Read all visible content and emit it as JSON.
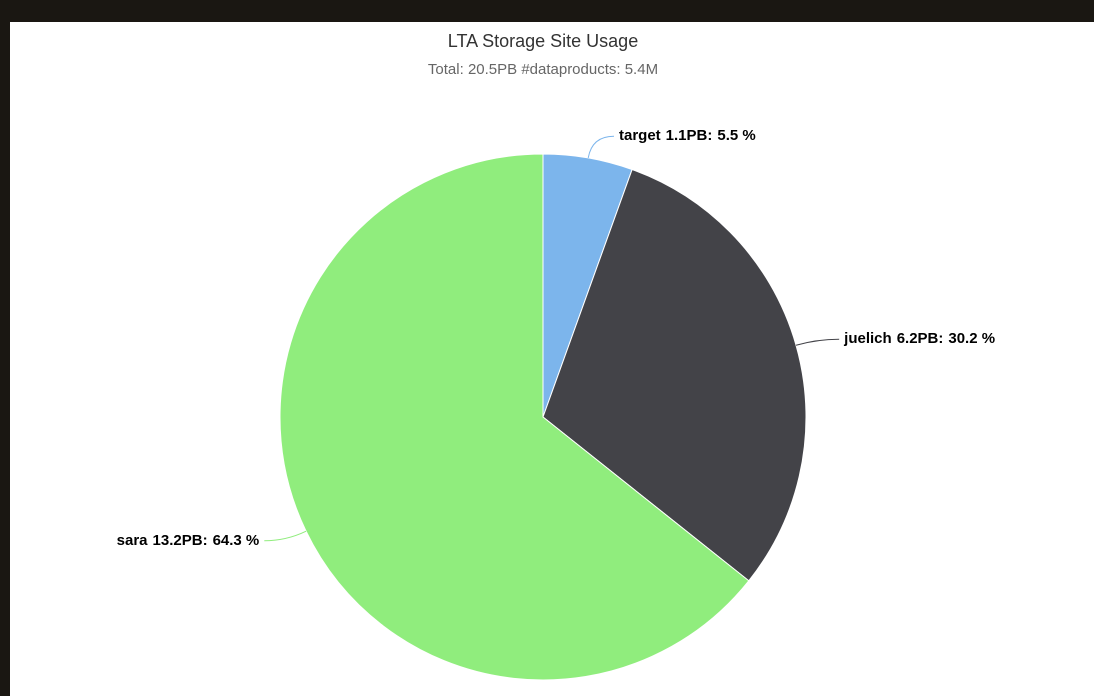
{
  "chart_data": {
    "type": "pie",
    "title": "LTA Storage Site Usage",
    "subtitle": "Total: 20.5PB #dataproducts: 5.4M",
    "categories": [
      "target",
      "juelich",
      "sara"
    ],
    "sizes": [
      1.1,
      6.2,
      13.2
    ],
    "size_labels": [
      "1.1PB:",
      "6.2PB:",
      "13.2PB:"
    ],
    "values": [
      5.5,
      30.2,
      64.3
    ],
    "value_labels": [
      "5.5 %",
      "30.2 %",
      "64.3 %"
    ],
    "colors": [
      "#7cb5ec",
      "#434348",
      "#90ed7d"
    ]
  }
}
